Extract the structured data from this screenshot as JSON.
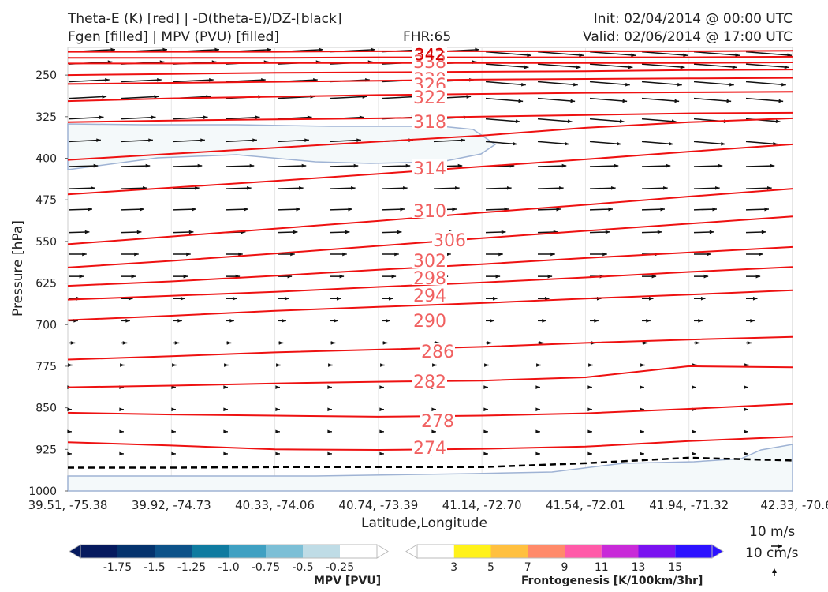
{
  "header": {
    "title_line1": "Theta-E (K) [red] | -D(theta-E)/DZ-[black]",
    "title_line2": "Fgen [filled] | MPV (PVU) [filled]",
    "fhr": "FHR:65",
    "init": "Init: 02/04/2014 @ 00:00 UTC",
    "valid": "Valid: 02/06/2014 @ 17:00 UTC"
  },
  "chart_data": {
    "type": "line",
    "xlabel": "Latitude,Longitude",
    "ylabel": "Pressure [hPa]",
    "x_ticks": [
      "39.51, -75.38",
      "39.92, -74.73",
      "40.33, -74.06",
      "40.74, -73.39",
      "41.14, -72.70",
      "41.54, -72.01",
      "41.94, -71.32",
      "42.33, -70.6"
    ],
    "y_ticks": [
      250,
      325,
      400,
      475,
      550,
      625,
      700,
      775,
      850,
      925,
      1000
    ],
    "ylim": [
      1000,
      200
    ],
    "y_reversed": true,
    "theta_e_color": "#ee1111",
    "theta_e_label_color": "#f06060",
    "contour_labels": [
      "342",
      "338",
      "330",
      "326",
      "322",
      "318",
      "314",
      "310",
      "306",
      "302",
      "298",
      "294",
      "290",
      "286",
      "282",
      "278",
      "274"
    ],
    "theta_e_contours": [
      {
        "level": 342,
        "pressure": [
          208,
          208,
          208,
          207,
          207,
          207,
          207,
          206
        ]
      },
      {
        "level": 338,
        "pressure": [
          219,
          219,
          219,
          218,
          218,
          218,
          218,
          217
        ]
      },
      {
        "level": 334,
        "pressure": [
          229,
          229,
          228,
          228,
          228,
          228,
          228,
          227
        ]
      },
      {
        "level": 330,
        "pressure": [
          250,
          248,
          246,
          245,
          244,
          243,
          241,
          240
        ]
      },
      {
        "level": 326,
        "pressure": [
          266,
          264,
          262,
          260,
          258,
          257,
          256,
          255
        ]
      },
      {
        "level": 322,
        "pressure": [
          297,
          292,
          289,
          286,
          284,
          282,
          281,
          280
        ]
      },
      {
        "level": 318,
        "pressure": [
          335,
          332,
          330,
          328,
          325,
          322,
          319,
          318
        ]
      },
      {
        "level": 314,
        "pressure": [
          403,
          392,
          381,
          370,
          359,
          345,
          335,
          328
        ]
      },
      {
        "level": 310,
        "pressure": [
          465,
          453,
          441,
          428,
          415,
          402,
          388,
          375
        ]
      },
      {
        "level": 306,
        "pressure": [
          555,
          541,
          527,
          513,
          498,
          484,
          469,
          455
        ]
      },
      {
        "level": 302,
        "pressure": [
          597,
          585,
          572,
          558,
          544,
          531,
          518,
          505
        ]
      },
      {
        "level": 298,
        "pressure": [
          630,
          622,
          612,
          601,
          591,
          580,
          570,
          560
        ]
      },
      {
        "level": 294,
        "pressure": [
          655,
          648,
          641,
          632,
          624,
          615,
          605,
          596
        ]
      },
      {
        "level": 290,
        "pressure": [
          692,
          684,
          675,
          668,
          661,
          653,
          646,
          638
        ]
      },
      {
        "level": 286,
        "pressure": [
          763,
          757,
          750,
          745,
          740,
          733,
          727,
          722
        ]
      },
      {
        "level": 282,
        "pressure": [
          813,
          810,
          806,
          803,
          801,
          795,
          775,
          777
        ]
      },
      {
        "level": 278,
        "pressure": [
          859,
          862,
          864,
          866,
          864,
          860,
          852,
          843
        ]
      },
      {
        "level": 274,
        "pressure": [
          912,
          918,
          925,
          926,
          924,
          920,
          910,
          902
        ]
      }
    ],
    "dthetae_dz_contour": {
      "style": "dashed",
      "color": "#000000",
      "pressure": [
        958,
        958,
        957,
        957,
        957,
        950,
        940,
        945
      ]
    },
    "mpv_regions": [
      {
        "name": "upper negative MPV",
        "value": -0.25,
        "color": "#f4f9fa"
      },
      {
        "name": "low-level negative MPV",
        "value": -0.25,
        "color": "#f4f9fa"
      }
    ],
    "wind_vectors_description": "tangential wind arrows, stronger aloft (W to E)",
    "mpv_colorbar": {
      "label": "MPV [PVU]",
      "ticks": [
        "-1.75",
        "-1.5",
        "-1.25",
        "-1.0",
        "-0.75",
        "-0.5",
        "-0.25"
      ],
      "colors": [
        "#061a5e",
        "#05336d",
        "#0d5289",
        "#0f7ba0",
        "#3fa0c2",
        "#7cbfd6",
        "#bfdce6",
        "#ffffff"
      ]
    },
    "fgen_colorbar": {
      "label": "Frontogenesis [K/100km/3hr]",
      "ticks": [
        "3",
        "5",
        "7",
        "9",
        "11",
        "13",
        "15"
      ],
      "colors": [
        "#ffffff",
        "#fff21a",
        "#ffc040",
        "#ff8a6a",
        "#ff5aa8",
        "#c82ad8",
        "#7a12f0",
        "#2c12ff"
      ]
    },
    "reference_vectors": {
      "horizontal": "10 m/s",
      "vertical": "10 cm/s"
    }
  }
}
